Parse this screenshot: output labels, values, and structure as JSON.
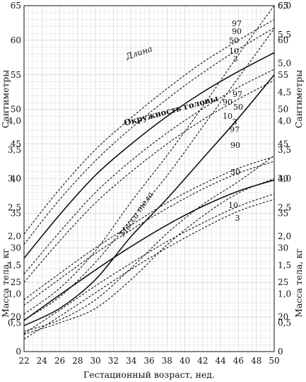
{
  "chart_data": {
    "type": "line",
    "xlabel": "Гестационный возраст, нед.",
    "x_ticks": [
      "22",
      "24",
      "26",
      "28",
      "30",
      "32",
      "34",
      "36",
      "38",
      "40",
      "42",
      "44",
      "46",
      "48",
      "50"
    ],
    "xlim": [
      22,
      50
    ],
    "left_upper_ylabel": "Сантиметры",
    "left_lower_ylabel": "Масса тела, кг",
    "right_upper_ylabel": "Сантиметры",
    "right_lower_ylabel": "Масса тела, кг",
    "cm_ticks": [
      "20",
      "25",
      "30",
      "35",
      "40",
      "45",
      "50",
      "55",
      "60",
      "65"
    ],
    "cm_range": [
      15,
      65
    ],
    "kg_ticks_left": [
      "0",
      "0,5",
      "1,0",
      "1,5",
      "2,0",
      "2,5",
      "3,0",
      "3,5",
      "4,0"
    ],
    "kg_ticks_right": [
      "0",
      "0,5",
      "1,0",
      "1,5",
      "2,0",
      "2,5",
      "3,0",
      "3,5",
      "4,0",
      "4,5",
      "5,0",
      "5,5",
      "6,0"
    ],
    "kg_range": [
      0,
      6.0
    ],
    "grid": true,
    "groups": [
      {
        "label": "Длина",
        "axis": "cm",
        "x": [
          22,
          26,
          30,
          34,
          38,
          42,
          46,
          50
        ],
        "series": [
          {
            "name": "97",
            "style": "dashed",
            "values": [
              32.0,
              38.5,
              44.2,
              48.8,
              53.0,
              56.8,
              60.0,
              63.0
            ]
          },
          {
            "name": "90",
            "style": "dashed",
            "values": [
              30.5,
              37.0,
              42.6,
              47.3,
              51.5,
              55.3,
              58.7,
              61.8
            ]
          },
          {
            "name": "50",
            "style": "solid",
            "values": [
              28.5,
              34.8,
              40.5,
              45.0,
              49.0,
              52.5,
              55.5,
              58.2
            ]
          },
          {
            "name": "10",
            "style": "dashed",
            "values": [
              26.2,
              32.3,
              38.0,
              42.6,
              46.6,
              50.1,
              53.2,
              55.8
            ]
          },
          {
            "name": "3",
            "style": "dashed",
            "values": [
              25.0,
              31.0,
              36.5,
              41.0,
              45.0,
              48.5,
              51.5,
              54.2
            ]
          }
        ]
      },
      {
        "label": "Окружность головы",
        "axis": "cm",
        "x": [
          22,
          26,
          30,
          34,
          38,
          42,
          46,
          50
        ],
        "series": [
          {
            "name": "97",
            "style": "dashed",
            "values": [
              22.5,
              26.3,
              30.0,
              33.3,
              36.5,
              39.2,
              41.5,
              43.2
            ]
          },
          {
            "name": "90",
            "style": "dashed",
            "values": [
              21.7,
              25.5,
              29.2,
              32.6,
              35.7,
              38.5,
              40.8,
              42.5
            ]
          },
          {
            "name": "50",
            "style": "solid",
            "values": [
              19.5,
              23.2,
              26.8,
              30.2,
              33.3,
              36.0,
              38.2,
              39.8
            ]
          },
          {
            "name": "10",
            "style": "dashed",
            "values": [
              17.6,
              21.0,
              24.5,
              27.8,
              30.9,
              33.6,
              36.0,
              37.8
            ]
          },
          {
            "name": "3",
            "style": "dashed",
            "values": [
              16.8,
              20.1,
              23.5,
              26.9,
              30.0,
              32.8,
              35.3,
              37.0
            ]
          }
        ]
      },
      {
        "label": "Масса тела",
        "axis": "kg",
        "x": [
          22,
          26,
          30,
          34,
          38,
          42,
          46,
          50
        ],
        "series": [
          {
            "name": "97",
            "style": "dashed",
            "values": [
              0.65,
              1.1,
              1.75,
              2.6,
              3.4,
              4.25,
              5.15,
              6.0
            ]
          },
          {
            "name": "90",
            "style": "dashed",
            "values": [
              0.55,
              0.95,
              1.55,
              2.3,
              3.05,
              3.9,
              4.75,
              5.6
            ]
          },
          {
            "name": "50",
            "style": "solid",
            "values": [
              0.45,
              0.75,
              1.25,
              2.0,
              2.65,
              3.35,
              4.05,
              4.8
            ]
          },
          {
            "name": "10",
            "style": "dashed",
            "values": [
              0.35,
              0.55,
              0.9,
              1.45,
              2.05,
              2.55,
              2.95,
              3.4
            ]
          },
          {
            "name": "3",
            "style": "dashed",
            "values": [
              0.3,
              0.5,
              0.75,
              1.25,
              1.85,
              2.35,
              2.75,
              3.0
            ]
          }
        ]
      }
    ]
  }
}
